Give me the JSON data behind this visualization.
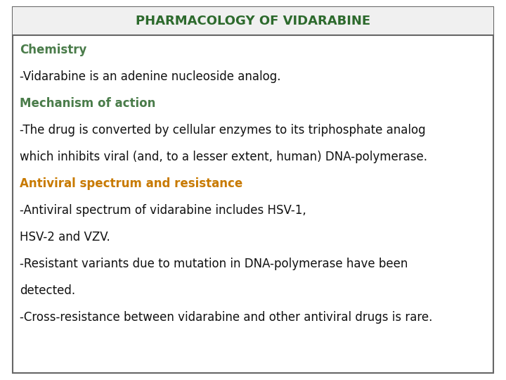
{
  "title": "PHARMACOLOGY OF VIDARABINE",
  "title_color": "#2d6a2d",
  "title_fontsize": 13,
  "background_color": "#ffffff",
  "border_color": "#666666",
  "header_bg": "#f0f0f0",
  "content_lines": [
    {
      "text": "Chemistry",
      "color": "#4a7c4a",
      "bold": true,
      "fontsize": 12
    },
    {
      "text": "-Vidarabine is an adenine nucleoside analog.",
      "color": "#111111",
      "bold": false,
      "fontsize": 12
    },
    {
      "text": "Mechanism of action",
      "color": "#4a7c4a",
      "bold": true,
      "fontsize": 12
    },
    {
      "text": "-The drug is converted by cellular enzymes to its triphosphate analog",
      "color": "#111111",
      "bold": false,
      "fontsize": 12
    },
    {
      "text": "which inhibits viral (and, to a lesser extent, human) DNA-polymerase.",
      "color": "#111111",
      "bold": false,
      "fontsize": 12
    },
    {
      "text": "Antiviral spectrum and resistance",
      "color": "#c87a00",
      "bold": true,
      "fontsize": 12
    },
    {
      "text": "-Antiviral spectrum of vidarabine includes HSV-1,",
      "color": "#111111",
      "bold": false,
      "fontsize": 12
    },
    {
      "text": "HSV-2 and VZV.",
      "color": "#111111",
      "bold": false,
      "fontsize": 12
    },
    {
      "text": "-Resistant variants due to mutation in DNA-polymerase have been",
      "color": "#111111",
      "bold": false,
      "fontsize": 12
    },
    {
      "text": "detected.",
      "color": "#111111",
      "bold": false,
      "fontsize": 12
    },
    {
      "text": "-Cross-resistance between vidarabine and other antiviral drugs is rare.",
      "color": "#111111",
      "bold": false,
      "fontsize": 12
    }
  ]
}
